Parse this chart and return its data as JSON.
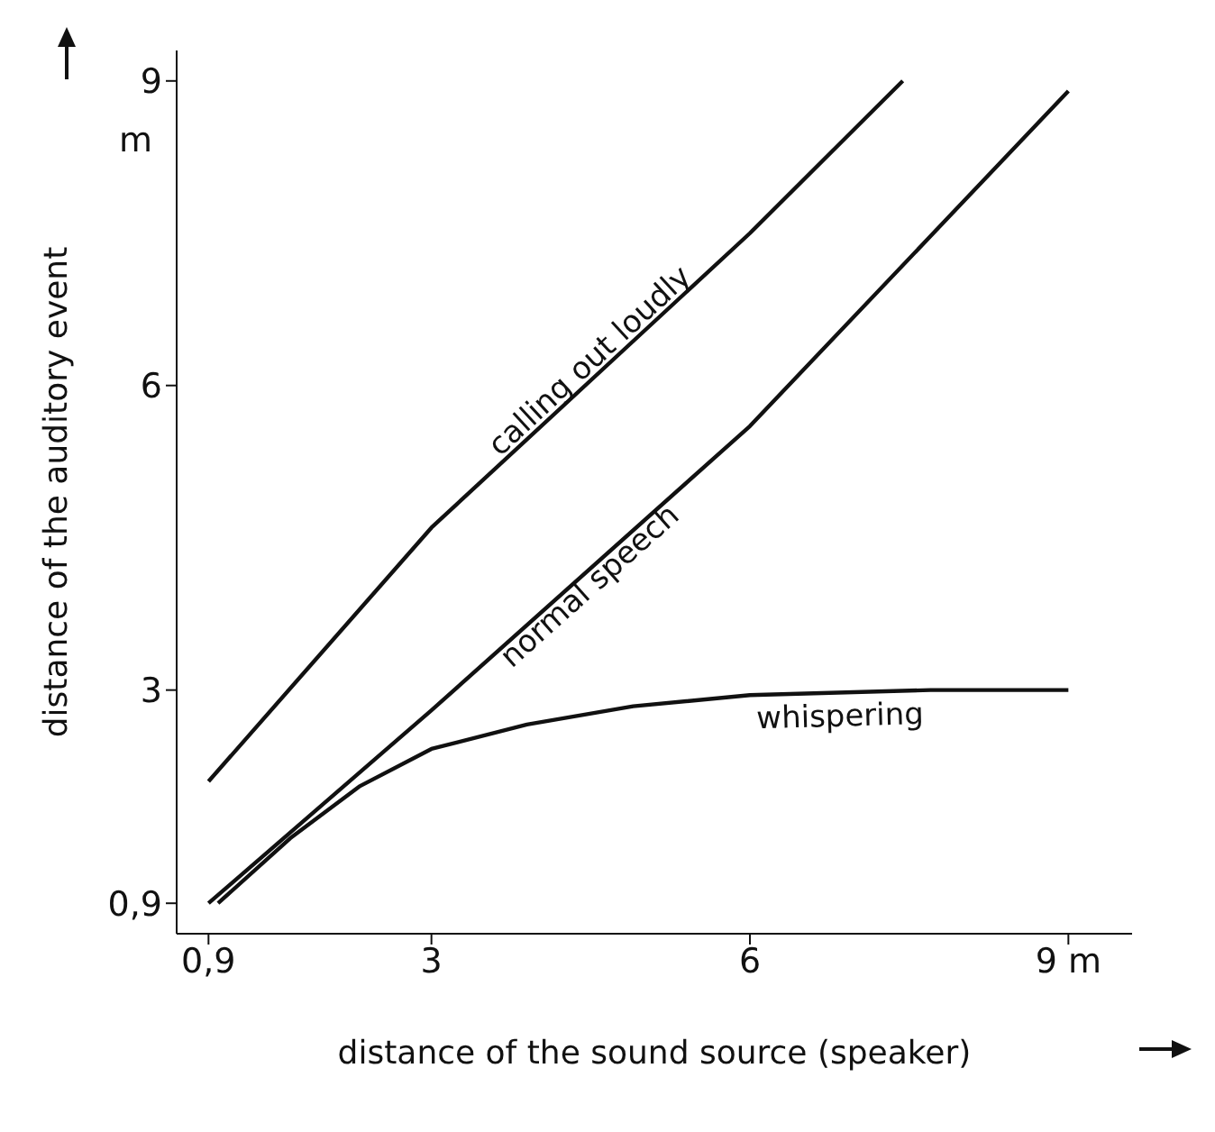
{
  "chart_data": {
    "type": "line",
    "xlabel": "distance of the sound source (speaker)",
    "ylabel": "distance of the auditory event",
    "xlim": [
      0.6,
      9.6
    ],
    "ylim": [
      0.6,
      9.3
    ],
    "xticks": [
      {
        "value": 0.9,
        "label": "0,9"
      },
      3,
      6,
      {
        "value": 9,
        "label": "9 m"
      }
    ],
    "yticks": [
      {
        "value": 0.9,
        "label": "0,9"
      },
      3,
      6,
      9
    ],
    "annotations": [
      "m"
    ],
    "grid": false,
    "legend": false,
    "marker": "none",
    "line_style": "solid",
    "series": [
      {
        "name": "calling out loudly",
        "color": "#111111",
        "x": [
          0.9,
          3,
          6,
          7.44
        ],
        "values": [
          2.1,
          4.6,
          7.5,
          9
        ]
      },
      {
        "name": "normal speech",
        "color": "#111111",
        "x": [
          0.9,
          3,
          6,
          9
        ],
        "values": [
          0.9,
          2.8,
          5.6,
          8.9
        ]
      },
      {
        "name": "whispering",
        "color": "#111111",
        "x": [
          0.99,
          1.67,
          2.32,
          3,
          3.9,
          4.9,
          6,
          7.7,
          9
        ],
        "values": [
          0.9,
          1.54,
          2.05,
          2.42,
          2.66,
          2.84,
          2.95,
          3,
          3
        ]
      }
    ]
  }
}
